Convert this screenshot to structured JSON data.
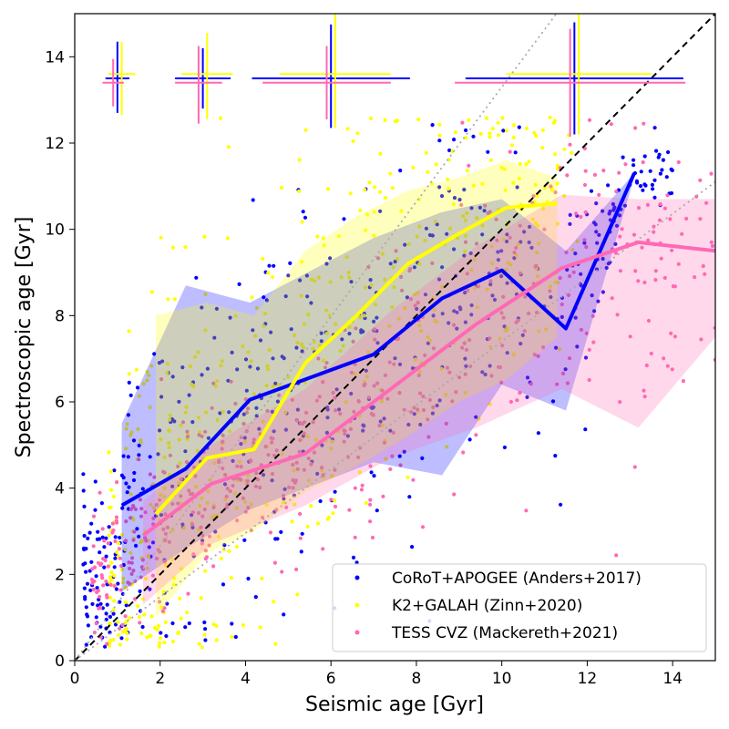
{
  "chart_data": {
    "type": "scatter",
    "xlabel": "Seismic age [Gyr]",
    "ylabel": "Spectroscopic age [Gyr]",
    "xlim": [
      0,
      15
    ],
    "ylim": [
      0,
      15
    ],
    "xticks": [
      "0",
      "2",
      "4",
      "6",
      "8",
      "10",
      "12",
      "14"
    ],
    "yticks": [
      "0",
      "2",
      "4",
      "6",
      "8",
      "10",
      "12",
      "14"
    ],
    "grid": false,
    "legend_position": "bottom-right",
    "reference_lines": [
      {
        "kind": "one-to-one",
        "style": "dashed",
        "color": "#000000",
        "slope": 1.0
      },
      {
        "kind": "upper-dotted",
        "style": "dotted",
        "color": "#aaaaaa",
        "slope": 1.33
      },
      {
        "kind": "lower-dotted",
        "style": "dotted",
        "color": "#aaaaaa",
        "slope": 0.74
      }
    ],
    "series": [
      {
        "name": "CoRoT+APOGEE (Anders+2017)",
        "color": "#0000ff",
        "median_x": [
          1.1,
          2.6,
          4.1,
          7.0,
          8.6,
          10.0,
          11.5,
          13.1
        ],
        "median_y": [
          3.6,
          4.45,
          6.05,
          7.1,
          8.4,
          9.05,
          7.7,
          11.3
        ],
        "band_upper": [
          5.5,
          8.7,
          8.3,
          9.8,
          10.4,
          10.7,
          9.5,
          11.3
        ],
        "band_lower": [
          1.6,
          2.6,
          3.5,
          4.6,
          4.3,
          6.4,
          5.8,
          11.2
        ],
        "errorbar": {
          "x": 1.0,
          "y": 13.5,
          "xerr": 0.3,
          "yerr_up": 0.8,
          "yerr_down": 0.8
        },
        "n_points": 520
      },
      {
        "name": "K2+GALAH (Zinn+2020)",
        "color": "#ffff00",
        "median_x": [
          1.9,
          3.1,
          4.2,
          5.4,
          6.6,
          7.8,
          9.0,
          10.1,
          11.3
        ],
        "median_y": [
          3.4,
          4.7,
          4.9,
          6.9,
          8.0,
          9.2,
          9.9,
          10.5,
          10.6
        ],
        "band_upper": [
          8.0,
          8.3,
          8.0,
          9.5,
          10.3,
          10.9,
          11.2,
          11.6,
          11.2
        ],
        "band_lower": [
          1.0,
          2.5,
          3.0,
          3.9,
          4.5,
          5.2,
          6.0,
          6.5,
          7.5
        ],
        "errorbar": {
          "x": 3.1,
          "y": 13.6,
          "xerr": 0.55,
          "yerr_up": 0.95,
          "yerr_down": 1.1
        },
        "n_points": 520
      },
      {
        "name": "TESS CVZ (Mackereth+2021)",
        "color": "#ff69b4",
        "median_x": [
          1.6,
          3.2,
          5.4,
          7.4,
          9.4,
          11.4,
          13.2,
          15.0
        ],
        "median_y": [
          2.9,
          4.1,
          4.8,
          6.3,
          7.8,
          9.1,
          9.7,
          9.5
        ],
        "band_upper": [
          3.7,
          5.0,
          6.3,
          8.1,
          9.6,
          10.8,
          10.7,
          10.7
        ],
        "band_lower": [
          1.3,
          2.7,
          3.6,
          4.7,
          5.4,
          6.3,
          5.4,
          7.5
        ],
        "errorbar": {
          "x": 6.0,
          "y": 13.4,
          "xerr": 1.5,
          "yerr_up": 1.0,
          "yerr_down": 1.0
        },
        "n_points": 520
      }
    ]
  }
}
